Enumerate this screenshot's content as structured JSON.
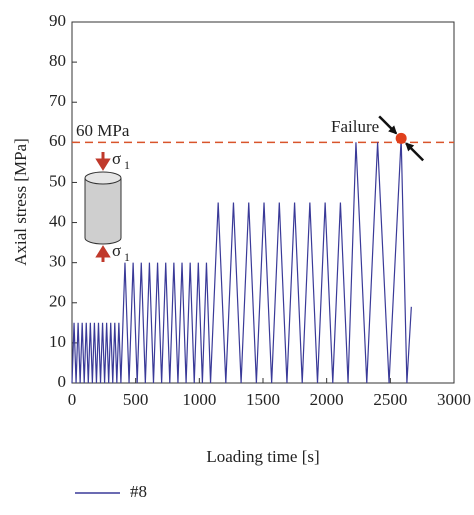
{
  "chart_data": {
    "type": "line",
    "x_label": "Loading time [s]",
    "y_label": "Axial stress [MPa]",
    "xlim": [
      0,
      3000
    ],
    "xticks": [
      0,
      500,
      1000,
      1500,
      2000,
      2500,
      3000
    ],
    "ylim": [
      0,
      90
    ],
    "yticks": [
      0,
      10,
      20,
      30,
      40,
      50,
      60,
      70,
      80,
      90
    ],
    "grid": false,
    "legend": "bottom-left",
    "x": [
      0,
      16,
      32,
      48,
      64,
      80,
      96,
      112,
      128,
      144,
      160,
      176,
      192,
      208,
      224,
      240,
      256,
      272,
      288,
      304,
      320,
      336,
      352,
      368,
      384,
      416,
      448,
      480,
      512,
      544,
      576,
      608,
      640,
      672,
      704,
      736,
      768,
      800,
      832,
      864,
      896,
      928,
      960,
      992,
      1024,
      1056,
      1088,
      1148,
      1208,
      1268,
      1328,
      1388,
      1448,
      1508,
      1568,
      1628,
      1688,
      1748,
      1808,
      1868,
      1928,
      1988,
      2048,
      2108,
      2168,
      2230,
      2315,
      2400,
      2490,
      2585,
      2630,
      2665
    ],
    "series": [
      {
        "name": "#8",
        "color": "#3a3a98",
        "values": [
          0,
          15,
          0,
          15,
          0,
          15,
          0,
          15,
          0,
          15,
          0,
          15,
          0,
          15,
          0,
          15,
          0,
          15,
          0,
          15,
          0,
          15,
          0,
          15,
          0,
          30,
          0,
          30,
          0,
          30,
          0,
          30,
          0,
          30,
          0,
          30,
          0,
          30,
          0,
          30,
          0,
          30,
          0,
          30,
          0,
          30,
          0,
          45,
          0,
          45,
          0,
          45,
          0,
          45,
          0,
          45,
          0,
          45,
          0,
          45,
          0,
          45,
          0,
          45,
          0,
          60,
          0,
          60,
          0,
          61,
          0,
          19
        ]
      }
    ],
    "reference_line": {
      "value": 60,
      "label": "60 MPa",
      "color": "#d9542b"
    },
    "failure_point": {
      "x": 2585,
      "y": 61,
      "label": "Failure",
      "color": "#e0401c"
    },
    "load_label": {
      "symbol": "σ",
      "subscript": "1"
    }
  }
}
